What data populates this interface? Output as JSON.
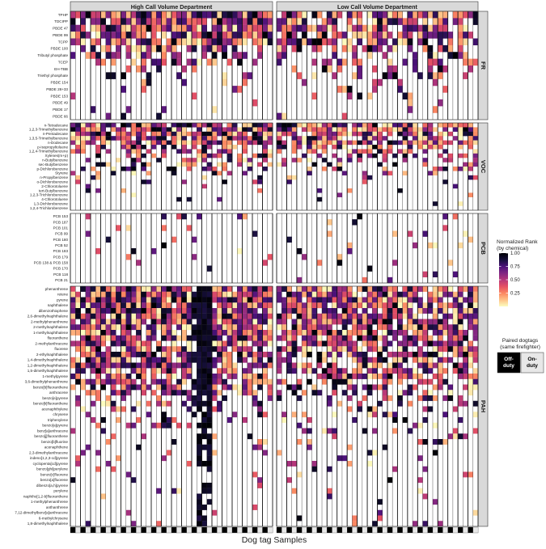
{
  "chart_data": {
    "type": "heatmap",
    "title": "",
    "xlabel": "Dog tag Samples",
    "ylabel": "",
    "column_facets": [
      "High Call Volume Department",
      "Low Call Volume Department"
    ],
    "columns_per_facet": 40,
    "value_range": [
      0,
      1
    ],
    "row_groups": [
      {
        "name": "FR",
        "rows": [
          "TPHP",
          "TDCIPP",
          "PBDE 47",
          "PBDE 99",
          "TCPP",
          "PBDE 100",
          "Tributyl phosphate",
          "TCEP",
          "EH-TBB",
          "Triethyl phosphate",
          "PBDE 154",
          "PBDE 28+33",
          "PBDE 153",
          "PBDE 49",
          "PBDE 17",
          "PBDE 66"
        ]
      },
      {
        "name": "VOC",
        "rows": [
          "n-Tetradecane",
          "1,2,3-Trimethylbenzene",
          "n-Pentadecane",
          "1,3,5-Trimethylbenzene",
          "n-Dodecane",
          "p-Isopropyltoluene",
          "1,2,4-Trimethylbenzene",
          "Xylenes(m+p)",
          "n-Butylbenzene",
          "sec-Butylbenzene",
          "p-Dichlorobenzene",
          "Styrene",
          "n-Propylbenzene",
          "o-Dichlorobenzene",
          "2-Chlorotoluene",
          "tert-Butylbenzene",
          "1,2,3-Trichlorobenzene",
          "4-Chlorotoluene",
          "1,3-Dichlorobenzene",
          "1,2,4-Trichlorobenzene"
        ]
      },
      {
        "name": "PCB",
        "rows": [
          "PCB 153",
          "PCB 187",
          "PCB 101",
          "PCB 99",
          "PCB 180",
          "PCB 52",
          "PCB 183",
          "PCB 179",
          "PCB 138 & PCB 158",
          "PCB 170",
          "PCB 118",
          "PCB 21"
        ]
      },
      {
        "name": "PAH",
        "rows": [
          "phenanthrene",
          "retene",
          "pyrene",
          "naphthalene",
          "dibenzothiophene",
          "2,6-dimethylnaphthalene",
          "2-methylphenanthrene",
          "2-methylnaphthalene",
          "1-methylnaphthalene",
          "fluoranthene",
          "2-methylanthracene",
          "fluorene",
          "2-ethylnaphthalene",
          "1,4-dimethylnaphthalene",
          "1,2-dimethylnaphthalene",
          "1,5-dimethylnaphthalene",
          "1-methylpyrene",
          "3,6-dimethylphenanthrene",
          "benzo[b]fluoranthene",
          "anthracene",
          "benzo[e]pyrene",
          "benzo[k]fluoranthene",
          "acenaphthylene",
          "chrysene",
          "triphenylene",
          "benzo[a]pyrene",
          "benz[a]anthracene",
          "benzo[j]fluoranthene",
          "benzo[b]fluorine",
          "acenaphthene",
          "2,3-dimethylanthracene",
          "indeno[1,2,3-cd]pyrene",
          "cyclopenta[cd]pyrene",
          "benzo[ghi]perylene",
          "benzo[c]fluorene",
          "benzo[a]fluorene",
          "dibenzo[a,h]pyrene",
          "perylene",
          "naphtho[1,2-b]fluoranthene",
          "1-methylphenanthrene",
          "anthanthrene",
          "7,12-dimethylbenz[a]anthracene",
          "6-methylchrysene",
          "1,8-dimethylnaphthalene"
        ]
      }
    ],
    "row_detection_rate": {
      "FR": [
        0.98,
        0.95,
        0.92,
        0.9,
        0.85,
        0.55,
        0.45,
        0.45,
        0.35,
        0.25,
        0.15,
        0.12,
        0.1,
        0.08,
        0.06,
        0.05
      ],
      "VOC": [
        0.92,
        0.9,
        0.88,
        0.85,
        0.85,
        0.7,
        0.6,
        0.45,
        0.35,
        0.3,
        0.25,
        0.2,
        0.15,
        0.12,
        0.1,
        0.08,
        0.06,
        0.05,
        0.05,
        0.04
      ],
      "PCB": [
        0.12,
        0.1,
        0.08,
        0.06,
        0.06,
        0.05,
        0.05,
        0.04,
        0.04,
        0.03,
        0.03,
        0.03
      ],
      "PAH": [
        0.98,
        0.97,
        0.97,
        0.96,
        0.95,
        0.94,
        0.93,
        0.92,
        0.9,
        0.9,
        0.88,
        0.85,
        0.82,
        0.8,
        0.78,
        0.76,
        0.7,
        0.62,
        0.55,
        0.5,
        0.4,
        0.35,
        0.3,
        0.25,
        0.2,
        0.18,
        0.16,
        0.14,
        0.12,
        0.1,
        0.1,
        0.08,
        0.08,
        0.07,
        0.06,
        0.06,
        0.05,
        0.05,
        0.04,
        0.04,
        0.03,
        0.03,
        0.03,
        0.03
      ]
    },
    "legend": {
      "colorbar_title": "Normalized Rank\n(by chemical)",
      "colorbar_ticks": [
        1.0,
        0.75,
        0.5,
        0.25
      ],
      "colorbar_tick_labels": [
        "1.00",
        "0.75",
        "0.50",
        "0.25"
      ],
      "pair_title": "Paired dogtags\n(same firefighter)",
      "pair_items": [
        {
          "label": "Off-\nduty",
          "fill": "#000000",
          "text_color": "#ffffff"
        },
        {
          "label": "On-\nduty",
          "fill": "#e8e8e8",
          "text_color": "#000000"
        }
      ]
    },
    "colormap": [
      "#fcfdbf",
      "#fec287",
      "#fb8761",
      "#e55064",
      "#b5367a",
      "#802582",
      "#4c117a",
      "#160f3b",
      "#000004"
    ],
    "grid": false
  }
}
